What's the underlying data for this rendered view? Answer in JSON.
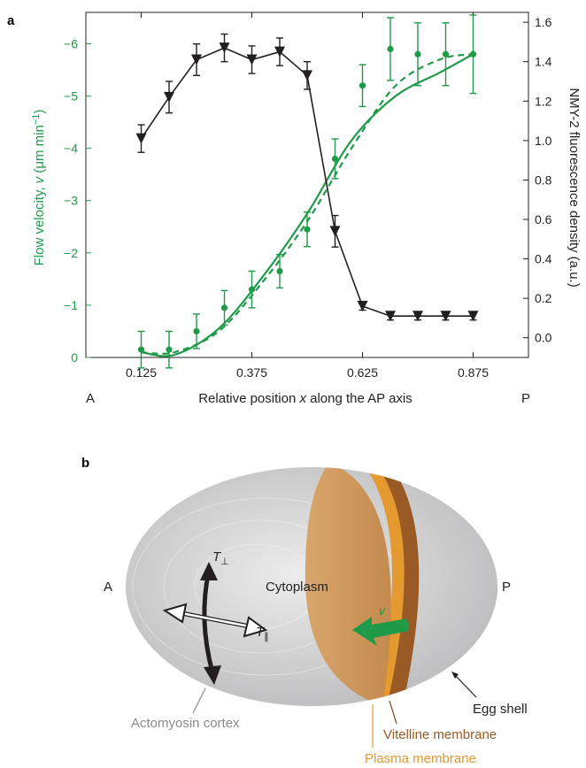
{
  "panel_a": {
    "label": "a",
    "left_axis_label_parts": [
      "Flow velocity, ",
      "v",
      " (μm min",
      "−1",
      ")"
    ],
    "right_axis_label": "NMY-2 fluorescence density (a.u.)",
    "xlabel_parts": [
      "Relative position ",
      "x",
      " along the AP axis"
    ],
    "left_end": "A",
    "right_end": "P",
    "colors": {
      "flow": "#1f9a49",
      "nmy2": "#231f20"
    }
  },
  "panel_b": {
    "label": "b",
    "pole_anterior": "A",
    "pole_posterior": "P",
    "cytoplasm": "Cytoplasm",
    "tension_perp_parts": [
      "T",
      "⊥"
    ],
    "tension_par_parts": [
      "T",
      "∥"
    ],
    "velocity_symbol": "v",
    "labels": {
      "egg_shell": "Egg shell",
      "vitelline_membrane": "Vitelline membrane",
      "plasma_membrane": "Plasma membrane",
      "actomyosin_cortex": "Actomyosin cortex"
    },
    "colors": {
      "cortex": "#cfcfd0",
      "cytoplasm": "#c9955d",
      "vitelline": "#9a5a26",
      "shell": "#5a3a1c",
      "plasma": "#e49a2f",
      "arrow_green": "#1f9a49"
    }
  },
  "chart_data": {
    "type": "line",
    "x_ticks": [
      "0.125",
      "0.375",
      "0.625",
      "0.875"
    ],
    "x_tick_values": [
      0.125,
      0.375,
      0.625,
      0.875
    ],
    "xlim": [
      0.0,
      1.0
    ],
    "left_ylim": [
      0,
      -6.6
    ],
    "left_ticks": [
      "0",
      "−1",
      "−2",
      "−3",
      "−4",
      "−5",
      "−6"
    ],
    "left_tick_values": [
      0,
      -1,
      -2,
      -3,
      -4,
      -5,
      -6
    ],
    "right_ylim": [
      -0.1,
      1.65
    ],
    "right_ticks": [
      "0.0",
      "0.2",
      "0.4",
      "0.6",
      "0.8",
      "1.0",
      "1.2",
      "1.4",
      "1.6"
    ],
    "right_tick_values": [
      0.0,
      0.2,
      0.4,
      0.6,
      0.8,
      1.0,
      1.2,
      1.4,
      1.6
    ],
    "series": [
      {
        "axis": "left",
        "marker": "circle",
        "color": "#1f9a49",
        "x": [
          0.125,
          0.188,
          0.25,
          0.313,
          0.375,
          0.438,
          0.5,
          0.563,
          0.625,
          0.688,
          0.75,
          0.813,
          0.875
        ],
        "y": [
          -0.15,
          -0.15,
          -0.5,
          -0.95,
          -1.3,
          -1.65,
          -2.45,
          -3.8,
          -5.2,
          -5.9,
          -5.8,
          -5.8,
          -5.8
        ],
        "err": [
          0.35,
          0.35,
          0.33,
          0.33,
          0.35,
          0.32,
          0.33,
          0.38,
          0.4,
          0.6,
          0.6,
          0.6,
          0.75
        ]
      },
      {
        "axis": "right",
        "marker": "triangle-down",
        "color": "#231f20",
        "x": [
          0.125,
          0.188,
          0.25,
          0.313,
          0.375,
          0.438,
          0.5,
          0.563,
          0.625,
          0.688,
          0.75,
          0.813,
          0.875
        ],
        "y": [
          1.01,
          1.22,
          1.41,
          1.47,
          1.41,
          1.45,
          1.33,
          0.54,
          0.16,
          0.11,
          0.11,
          0.11,
          0.11
        ],
        "err": [
          0.07,
          0.08,
          0.08,
          0.07,
          0.07,
          0.07,
          0.07,
          0.08,
          0.02,
          0.02,
          0.02,
          0.02,
          0.02
        ]
      }
    ],
    "fits": [
      {
        "style": "solid",
        "axis": "left",
        "x": [
          0.125,
          0.2,
          0.3,
          0.4,
          0.5,
          0.6,
          0.7,
          0.8,
          0.875
        ],
        "y": [
          -0.1,
          -0.05,
          -0.55,
          -1.55,
          -2.75,
          -4.15,
          -5.0,
          -5.45,
          -5.8
        ]
      },
      {
        "style": "dashed",
        "axis": "left",
        "x": [
          0.125,
          0.2,
          0.3,
          0.4,
          0.5,
          0.6,
          0.7,
          0.8,
          0.875
        ],
        "y": [
          -0.1,
          -0.1,
          -0.5,
          -1.45,
          -2.6,
          -4.0,
          -5.2,
          -5.7,
          -5.8
        ]
      }
    ]
  }
}
